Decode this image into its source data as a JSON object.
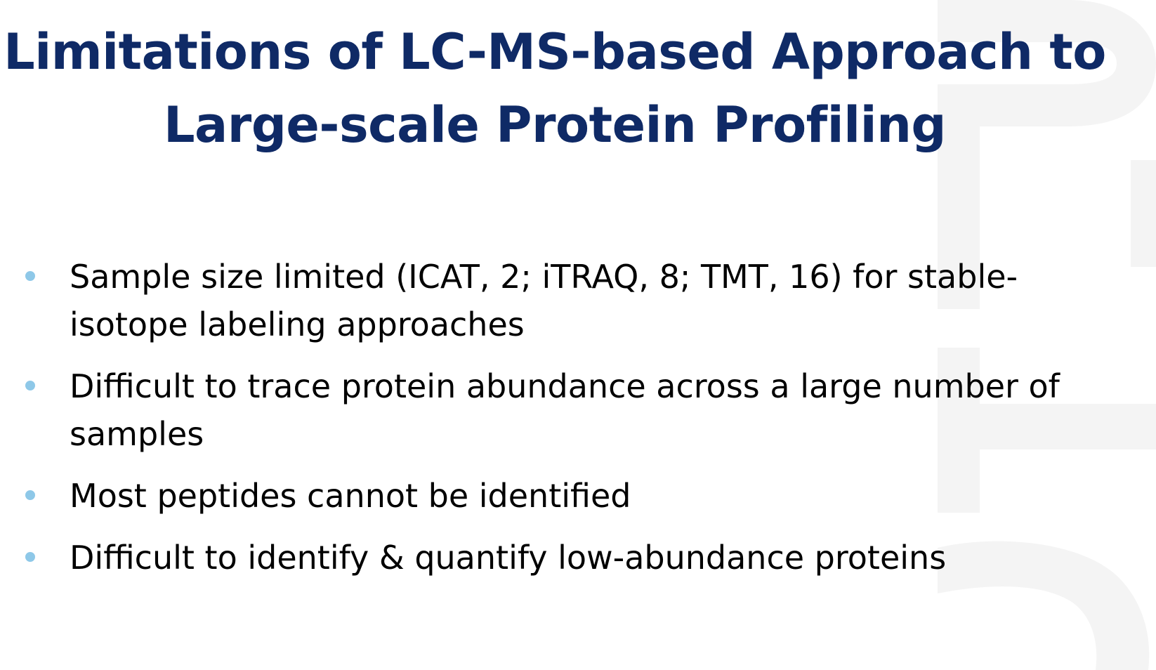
{
  "slide": {
    "title_lines": [
      "Limitations of LC-MS-based Approach to",
      "Large-scale Protein Profiling"
    ],
    "bullets": [
      {
        "lines": [
          "Sample size limited (ICAT, 2; iTRAQ, 8; TMT, 16) for stable-",
          "isotope labeling approaches"
        ]
      },
      {
        "lines": [
          "Difficult to trace protein abundance across a large number of",
          "samples"
        ]
      },
      {
        "lines": [
          "Most peptides cannot be identified"
        ]
      },
      {
        "lines": [
          "Difficult to identify & quantify low-abundance proteins"
        ]
      }
    ]
  },
  "colors": {
    "title": "#0f2a66",
    "body_text": "#000000",
    "bullet": "#8ec8e8",
    "watermark": "#f4f4f4"
  }
}
